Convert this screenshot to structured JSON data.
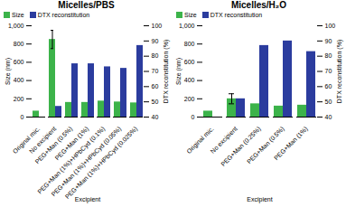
{
  "chart_data": [
    {
      "type": "bar",
      "title": "Micelles/PBS",
      "xlabel": "Excipient",
      "ylabel": "Size (nm)",
      "y2label": "DTX reconstitution (%)",
      "categories": [
        "Original mic.",
        "No excipient",
        "PEG+Man (0.5%)",
        "PEG+Man (1%)",
        "PEG+Man (1%)+HPbCyd (0.1%)",
        "PEG+Man (1%)+HPbCyd (0.05%)",
        "PEG+Man (1%)+HPbCyd (0.025%)"
      ],
      "series": [
        {
          "name": "Size",
          "color": "#3cb34a",
          "values": [
            65,
            850,
            160,
            160,
            175,
            165,
            155
          ],
          "errors": [
            0,
            100,
            0,
            0,
            0,
            0,
            0
          ]
        },
        {
          "name": "DTX reconstitution",
          "color": "#2b3c9e",
          "values": [
            null,
            47,
            75,
            75,
            73,
            72,
            87
          ],
          "axis": "y2"
        }
      ],
      "ylim": [
        0,
        1000
      ],
      "yticks": [
        0,
        200,
        400,
        600,
        800,
        1000
      ],
      "y2lim": [
        40,
        100
      ],
      "y2ticks": [
        40,
        50,
        60,
        70,
        80,
        90,
        100
      ],
      "grid": false,
      "legend": "upper left"
    },
    {
      "type": "bar",
      "title": "Micelles/H₂O",
      "xlabel": "Excipient",
      "ylabel": "Size (nm)",
      "y2label": "DTX reconstitution (%)",
      "categories": [
        "Original mic.",
        "No excipient",
        "PEG+Man (0.25%)",
        "PEG+Man (0.5%)",
        "PEG+Man (1%)"
      ],
      "series": [
        {
          "name": "Size",
          "color": "#3cb34a",
          "values": [
            65,
            200,
            145,
            120,
            130
          ],
          "errors": [
            0,
            55,
            0,
            0,
            0
          ]
        },
        {
          "name": "DTX reconstitution",
          "color": "#2b3c9e",
          "values": [
            null,
            52,
            87,
            90,
            83
          ],
          "axis": "y2"
        }
      ],
      "ylim": [
        0,
        1000
      ],
      "yticks": [
        0,
        200,
        400,
        600,
        800,
        1000
      ],
      "y2lim": [
        40,
        100
      ],
      "y2ticks": [
        40,
        50,
        60,
        70,
        80,
        90,
        100
      ],
      "grid": false,
      "legend": "upper left"
    }
  ]
}
